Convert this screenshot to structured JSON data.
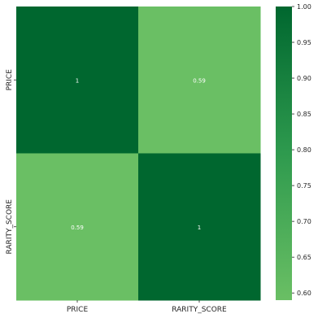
{
  "chart_data": {
    "type": "heatmap",
    "x_categories": [
      "PRICE",
      "RARITY_SCORE"
    ],
    "y_categories": [
      "PRICE",
      "RARITY_SCORE"
    ],
    "values": [
      [
        1,
        0.59
      ],
      [
        0.59,
        1
      ]
    ],
    "annotations": [
      [
        "1",
        "0.59"
      ],
      [
        "0.59",
        "1"
      ]
    ],
    "colormap": "Greens",
    "color_low": "#6abf64",
    "color_high": "#00672f",
    "colorbar": {
      "range": [
        0.59,
        1.0
      ],
      "ticks": [
        0.6,
        0.65,
        0.7,
        0.75,
        0.8,
        0.85,
        0.9,
        0.95,
        1.0
      ],
      "tick_labels": [
        "0.60",
        "0.65",
        "0.70",
        "0.75",
        "0.80",
        "0.85",
        "0.90",
        "0.95",
        "1.00"
      ]
    },
    "title": "",
    "xlabel": "",
    "ylabel": ""
  }
}
